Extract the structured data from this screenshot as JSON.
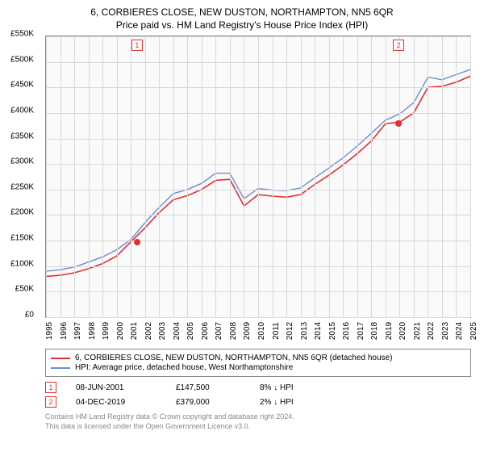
{
  "title": "6, CORBIERES CLOSE, NEW DUSTON, NORTHAMPTON, NN5 6QR",
  "subtitle": "Price paid vs. HM Land Registry's House Price Index (HPI)",
  "chart": {
    "type": "line",
    "background_color": "#fafafa",
    "grid_color": "#d8d8d8",
    "border_color": "#888888",
    "xlim": [
      1995,
      2025
    ],
    "ylim": [
      0,
      550000
    ],
    "ytick_step": 50000,
    "y_ticks": [
      "£0",
      "£50K",
      "£100K",
      "£150K",
      "£200K",
      "£250K",
      "£300K",
      "£350K",
      "£400K",
      "£450K",
      "£500K",
      "£550K"
    ],
    "x_ticks": [
      "1995",
      "1996",
      "1997",
      "1998",
      "1999",
      "2000",
      "2001",
      "2002",
      "2003",
      "2004",
      "2005",
      "2006",
      "2007",
      "2008",
      "2009",
      "2010",
      "2011",
      "2012",
      "2013",
      "2014",
      "2015",
      "2016",
      "2017",
      "2018",
      "2019",
      "2020",
      "2021",
      "2022",
      "2023",
      "2024",
      "2025"
    ],
    "series": [
      {
        "name": "property",
        "label": "6, CORBIERES CLOSE, NEW DUSTON, NORTHAMPTON, NN5 6QR (detached house)",
        "color": "#e03030",
        "line_width": 1.6,
        "x": [
          1995,
          1996,
          1997,
          1998,
          1999,
          2000,
          2001,
          2002,
          2003,
          2004,
          2005,
          2006,
          2007,
          2008,
          2009,
          2010,
          2011,
          2012,
          2013,
          2014,
          2015,
          2016,
          2017,
          2018,
          2019,
          2020,
          2021,
          2022,
          2023,
          2024,
          2025
        ],
        "y": [
          80000,
          82000,
          87000,
          95000,
          105000,
          120000,
          147500,
          175000,
          205000,
          230000,
          238000,
          250000,
          268000,
          270000,
          218000,
          240000,
          237000,
          235000,
          240000,
          260000,
          278000,
          298000,
          320000,
          345000,
          379000,
          382000,
          400000,
          450000,
          452000,
          460000,
          472000
        ]
      },
      {
        "name": "hpi",
        "label": "HPI: Average price, detached house, West Northamptonshire",
        "color": "#6a8ecb",
        "line_width": 1.4,
        "x": [
          1995,
          1996,
          1997,
          1998,
          1999,
          2000,
          2001,
          2002,
          2003,
          2004,
          2005,
          2006,
          2007,
          2008,
          2009,
          2010,
          2011,
          2012,
          2013,
          2014,
          2015,
          2016,
          2017,
          2018,
          2019,
          2020,
          2021,
          2022,
          2023,
          2024,
          2025
        ],
        "y": [
          90000,
          93000,
          98000,
          108000,
          118000,
          132000,
          152000,
          185000,
          215000,
          242000,
          250000,
          262000,
          282000,
          282000,
          232000,
          252000,
          249000,
          248000,
          253000,
          273000,
          292000,
          312000,
          335000,
          360000,
          386000,
          398000,
          420000,
          470000,
          465000,
          475000,
          485000
        ]
      }
    ],
    "markers": [
      {
        "id": "1",
        "x": 2001.44,
        "y": 147500
      },
      {
        "id": "2",
        "x": 2019.93,
        "y": 379000
      }
    ],
    "marker_box_color": "#e03030"
  },
  "legend": {
    "items": [
      {
        "color": "#e03030",
        "label": "6, CORBIERES CLOSE, NEW DUSTON, NORTHAMPTON, NN5 6QR (detached house)"
      },
      {
        "color": "#6a8ecb",
        "label": "HPI: Average price, detached house, West Northamptonshire"
      }
    ]
  },
  "transactions": [
    {
      "marker": "1",
      "date": "08-JUN-2001",
      "price": "£147,500",
      "pct": "8% ↓ HPI"
    },
    {
      "marker": "2",
      "date": "04-DEC-2019",
      "price": "£379,000",
      "pct": "2% ↓ HPI"
    }
  ],
  "footer": {
    "line1": "Contains HM Land Registry data © Crown copyright and database right 2024.",
    "line2": "This data is licensed under the Open Government Licence v3.0."
  }
}
